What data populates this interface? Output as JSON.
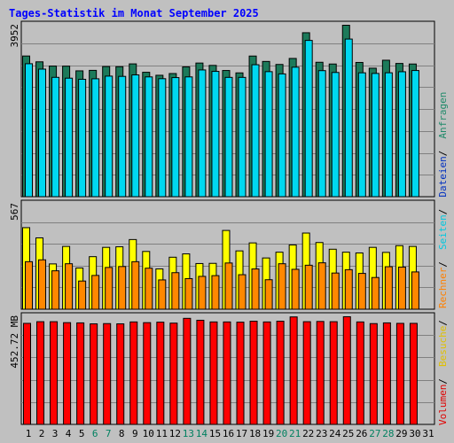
{
  "chart_data": {
    "type": "bar",
    "title": "Tages-Statistik im Monat September 2025",
    "categories": [
      "1",
      "2",
      "3",
      "4",
      "5",
      "6",
      "7",
      "8",
      "9",
      "10",
      "11",
      "12",
      "13",
      "14",
      "15",
      "16",
      "17",
      "18",
      "19",
      "20",
      "21",
      "22",
      "23",
      "24",
      "25",
      "26",
      "27",
      "28",
      "29",
      "30",
      "31"
    ],
    "weekend_days": [
      "6",
      "7",
      "13",
      "14",
      "20",
      "21",
      "27",
      "28"
    ],
    "panels": [
      {
        "name": "top",
        "max_label": "3952",
        "ymax": 3952,
        "legend": [
          {
            "label": "Anfragen",
            "color": "#1f8a6a"
          },
          {
            "label": "Dateien",
            "color": "#0030c0"
          },
          {
            "label": "Seiten",
            "color": "#00c8e0"
          }
        ],
        "series": [
          {
            "name": "Anfragen",
            "color": "#1c7a5a",
            "values": [
              3245,
              3111,
              3014,
              3012,
              2904,
              2915,
              3003,
              2999,
              3064,
              2871,
              2802,
              2842,
              2994,
              3083,
              3029,
              2912,
              2857,
              3244,
              3120,
              3051,
              3189,
              3780,
              3101,
              3061,
              3952,
              3097,
              2965,
              3148,
              3074,
              3061,
              0
            ]
          },
          {
            "name": "Seiten",
            "color": "#00d8f0",
            "values": [
              3149,
              3025,
              2836,
              2817,
              2791,
              2803,
              2864,
              2858,
              2892,
              2846,
              2805,
              2830,
              2846,
              3006,
              2973,
              2835,
              2835,
              3126,
              2967,
              2915,
              3069,
              3685,
              2990,
              2948,
              3716,
              2940,
              2926,
              2941,
              2965,
              2993,
              0
            ]
          }
        ]
      },
      {
        "name": "middle",
        "max_label": "567",
        "ymax": 567,
        "legend": [
          {
            "label": "Besuche",
            "color": "#e0c000"
          },
          {
            "label": "Rechner",
            "color": "#ff8000"
          }
        ],
        "series": [
          {
            "name": "Besuche",
            "color": "#ffff00",
            "values": [
              441,
              386,
              246,
              340,
              224,
              285,
              335,
              338,
              377,
              313,
              219,
              282,
              300,
              248,
              249,
              426,
              316,
              359,
              278,
              309,
              348,
              412,
              361,
              325,
              309,
              305,
              335,
              308,
              344,
              340,
              0
            ]
          },
          {
            "name": "Rechner",
            "color": "#ff8800",
            "values": [
              277,
              287,
              228,
              266,
              173,
              203,
              246,
              251,
              277,
              242,
              179,
              218,
              186,
              198,
              202,
              270,
              207,
              238,
              180,
              266,
              236,
              258,
              271,
              216,
              234,
              214,
              192,
              250,
              248,
              222,
              0
            ]
          }
        ]
      },
      {
        "name": "bottom",
        "max_label": "452.72 MB",
        "ymax": 452.72,
        "legend": [
          {
            "label": "Volumen",
            "color": "#e00000"
          }
        ],
        "series": [
          {
            "name": "Volumen",
            "color": "#ff0000",
            "values": [
              425,
              432,
              432,
              428,
              427,
              423,
              424,
              423,
              431,
              428,
              430,
              426,
              446,
              438,
              431,
              431,
              430,
              434,
              431,
              434,
              452,
              432,
              433,
              432,
              452.72,
              431,
              424,
              427,
              425,
              425,
              0
            ]
          }
        ]
      }
    ]
  }
}
